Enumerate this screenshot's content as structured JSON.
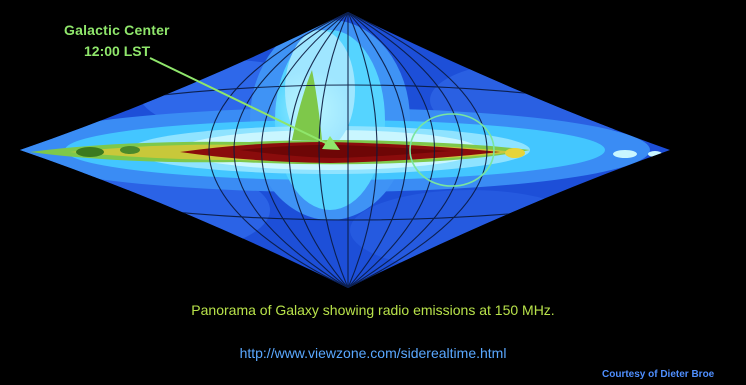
{
  "annotation": {
    "title": "Galactic Center",
    "time": "12:00 LST"
  },
  "caption": "Panorama of Galaxy showing radio emissions at 150 MHz.",
  "url": "http://www.viewzone.com/siderealtime.html",
  "credit": "Courtesy of Dieter Broe",
  "colors": {
    "background": "#000000",
    "annotation_text": "#8fe66b",
    "caption_text": "#b8e24a",
    "url_text": "#5aa8ff",
    "credit_text": "#4f8fff",
    "emission_low": "#1d4fd8",
    "emission_mid": "#43c6ff",
    "emission_high": "#7ec84a",
    "emission_peak": "#8a0c0c"
  },
  "icons": {
    "arrow": "pointer-arrow-icon",
    "circle": "highlight-circle-icon"
  }
}
